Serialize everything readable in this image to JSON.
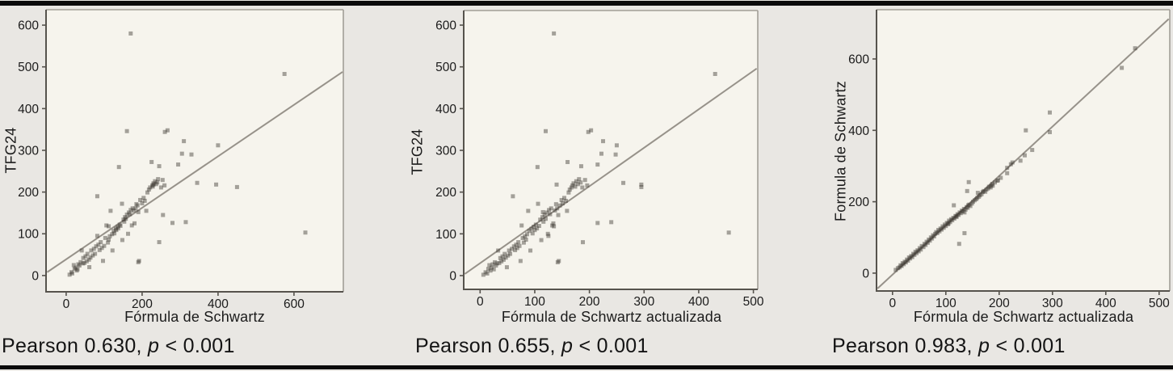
{
  "page": {
    "background": "#e9e7e3",
    "plot_background": "#f6f4ed",
    "rule_color": "#0b0b0b",
    "axis_color": "#56534d",
    "frame_color": "#a29e96",
    "fit_line_color": "#97928a",
    "marker_color": "#3e3a34",
    "marker_opacity": 0.45,
    "tick_label_color": "#1b1b1b"
  },
  "chart_data": {
    "type": "scatter",
    "subjects_fields": [
      "formula_schwartz_actualizada",
      "formula_schwartz",
      "tfg24"
    ],
    "subjects": [
      [
        135,
        170,
        580
      ],
      [
        430,
        575,
        483
      ],
      [
        455,
        630,
        103
      ],
      [
        295,
        450,
        212
      ],
      [
        250,
        400,
        312
      ],
      [
        295,
        395,
        218
      ],
      [
        225,
        310,
        322
      ],
      [
        248,
        330,
        290
      ],
      [
        198,
        260,
        344
      ],
      [
        203,
        267,
        348
      ],
      [
        120,
        160,
        346
      ],
      [
        160,
        225,
        272
      ],
      [
        185,
        245,
        262
      ],
      [
        105,
        139,
        260
      ],
      [
        215,
        295,
        266
      ],
      [
        222,
        305,
        292
      ],
      [
        140,
        230,
        218
      ],
      [
        143,
        255,
        145
      ],
      [
        115,
        190,
        152
      ],
      [
        125,
        82,
        95
      ],
      [
        135,
        112,
        118
      ],
      [
        240,
        315,
        128
      ],
      [
        215,
        280,
        126
      ],
      [
        188,
        245,
        80
      ],
      [
        142,
        190,
        32
      ],
      [
        262,
        345,
        222
      ],
      [
        6,
        9,
        2
      ],
      [
        10,
        14,
        8
      ],
      [
        13,
        16,
        5
      ],
      [
        15,
        22,
        16
      ],
      [
        17,
        20,
        25
      ],
      [
        19,
        28,
        12
      ],
      [
        21,
        25,
        19
      ],
      [
        23,
        32,
        27
      ],
      [
        25,
        30,
        15
      ],
      [
        27,
        38,
        32
      ],
      [
        29,
        35,
        24
      ],
      [
        31,
        44,
        29
      ],
      [
        33,
        41,
        60
      ],
      [
        35,
        48,
        30
      ],
      [
        37,
        45,
        42
      ],
      [
        39,
        54,
        34
      ],
      [
        41,
        51,
        46
      ],
      [
        43,
        60,
        38
      ],
      [
        45,
        56,
        52
      ],
      [
        47,
        64,
        43
      ],
      [
        49,
        61,
        20
      ],
      [
        51,
        70,
        48
      ],
      [
        53,
        66,
        60
      ],
      [
        55,
        76,
        52
      ],
      [
        58,
        73,
        64
      ],
      [
        60,
        82,
        190
      ],
      [
        62,
        79,
        70
      ],
      [
        64,
        88,
        61
      ],
      [
        66,
        85,
        74
      ],
      [
        68,
        94,
        66
      ],
      [
        70,
        91,
        80
      ],
      [
        72,
        100,
        71
      ],
      [
        74,
        97,
        35
      ],
      [
        76,
        106,
        120
      ],
      [
        78,
        103,
        90
      ],
      [
        80,
        110,
        79
      ],
      [
        82,
        115,
        94
      ],
      [
        84,
        112,
        86
      ],
      [
        86,
        121,
        99
      ],
      [
        88,
        117,
        155
      ],
      [
        90,
        125,
        107
      ],
      [
        92,
        122,
        60
      ],
      [
        94,
        131,
        112
      ],
      [
        96,
        127,
        101
      ],
      [
        98,
        136,
        117
      ],
      [
        100,
        132,
        109
      ],
      [
        102,
        141,
        122
      ],
      [
        104,
        137,
        113
      ],
      [
        106,
        147,
        172
      ],
      [
        108,
        143,
        119
      ],
      [
        110,
        151,
        134
      ],
      [
        112,
        148,
        85
      ],
      [
        114,
        155,
        140
      ],
      [
        116,
        153,
        129
      ],
      [
        118,
        160,
        146
      ],
      [
        120,
        157,
        136
      ],
      [
        122,
        165,
        151
      ],
      [
        124,
        163,
        100
      ],
      [
        126,
        170,
        157
      ],
      [
        128,
        168,
        147
      ],
      [
        130,
        175,
        161
      ],
      [
        132,
        173,
        120
      ],
      [
        134,
        180,
        125
      ],
      [
        137,
        178,
        156
      ],
      [
        139,
        185,
        171
      ],
      [
        141,
        183,
        161
      ],
      [
        144,
        192,
        35
      ],
      [
        146,
        188,
        168
      ],
      [
        149,
        195,
        181
      ],
      [
        151,
        200,
        173
      ],
      [
        154,
        204,
        186
      ],
      [
        157,
        207,
        179
      ],
      [
        159,
        211,
        155
      ],
      [
        162,
        214,
        199
      ],
      [
        164,
        218,
        206
      ],
      [
        167,
        221,
        211
      ],
      [
        169,
        227,
        216
      ],
      [
        171,
        230,
        221
      ],
      [
        174,
        228,
        213
      ],
      [
        176,
        234,
        226
      ],
      [
        179,
        237,
        219
      ],
      [
        181,
        242,
        231
      ],
      [
        184,
        240,
        223
      ],
      [
        187,
        250,
        211
      ],
      [
        192,
        254,
        229
      ],
      [
        196,
        259,
        216
      ]
    ],
    "charts": [
      {
        "xlabel": "Fórmula de Schwartz",
        "ylabel": "TFG24",
        "x_field": 1,
        "y_field": 2,
        "xlim": [
          -53,
          730
        ],
        "ylim": [
          -39,
          637
        ],
        "xticks": [
          0,
          200,
          400,
          600
        ],
        "yticks": [
          0,
          100,
          200,
          300,
          400,
          500,
          600
        ],
        "frame": [
          "left",
          "bottom",
          "top",
          "right"
        ],
        "fit_line": {
          "x1": -50,
          "y1": 8,
          "x2": 728,
          "y2": 488
        },
        "pearson_r": "0.630",
        "p_value": "< 0.001",
        "caption": {
          "text1": "Pearson 0.630, ",
          "p": "p",
          "text2": " < 0.001"
        }
      },
      {
        "xlabel": "Fórmula de Schwartz actualizada",
        "ylabel": "TFG24",
        "x_field": 0,
        "y_field": 2,
        "xlim": [
          -30,
          508
        ],
        "ylim": [
          -33,
          635
        ],
        "xticks": [
          0,
          100,
          200,
          300,
          400,
          500
        ],
        "yticks": [
          0,
          100,
          200,
          300,
          400,
          500,
          600
        ],
        "frame": [
          "left",
          "bottom",
          "top",
          "right"
        ],
        "fit_line": {
          "x1": -28,
          "y1": 4,
          "x2": 506,
          "y2": 496
        },
        "pearson_r": "0.655",
        "p_value": "< 0.001",
        "caption": {
          "text1": "Pearson 0.655, ",
          "p": "p",
          "text2": " < 0.001"
        }
      },
      {
        "xlabel": "Fórmula de Schwartz actualizada",
        "ylabel": "Formula de Schwartz",
        "x_field": 0,
        "y_field": 1,
        "xlim": [
          -30,
          520
        ],
        "ylim": [
          -50,
          738
        ],
        "xticks": [
          0,
          100,
          200,
          300,
          400,
          500
        ],
        "yticks": [
          0,
          200,
          400,
          600
        ],
        "frame": [
          "left",
          "bottom",
          "top",
          "right"
        ],
        "fit_line": {
          "x1": -28,
          "y1": -43,
          "x2": 518,
          "y2": 712
        },
        "pearson_r": "0.983",
        "p_value": "< 0.001",
        "caption": {
          "text1": "Pearson 0.983, ",
          "p": "p",
          "text2": " < 0.001"
        }
      }
    ]
  }
}
